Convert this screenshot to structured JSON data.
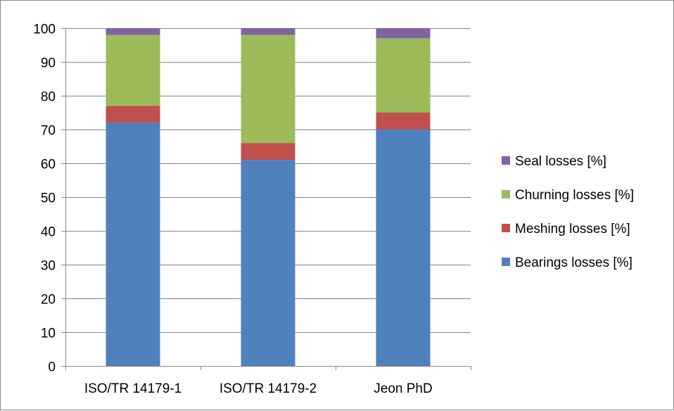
{
  "chart_data": {
    "type": "bar",
    "stacked": true,
    "categories": [
      "ISO/TR 14179-1",
      "ISO/TR 14179-2",
      "Jeon PhD"
    ],
    "series": [
      {
        "name": "Bearings losses [%]",
        "values": [
          72,
          61,
          70
        ],
        "color": "#4f81bd"
      },
      {
        "name": "Meshing losses [%]",
        "values": [
          5,
          5,
          5
        ],
        "color": "#c0504d"
      },
      {
        "name": "Churning losses [%]",
        "values": [
          21,
          32,
          22
        ],
        "color": "#9bbb59"
      },
      {
        "name": "Seal losses [%]",
        "values": [
          2,
          2,
          3
        ],
        "color": "#8064a2"
      }
    ],
    "ylim": [
      0,
      100
    ],
    "yticks": [
      0,
      10,
      20,
      30,
      40,
      50,
      60,
      70,
      80,
      90,
      100
    ],
    "grid": true,
    "legend": "right"
  }
}
